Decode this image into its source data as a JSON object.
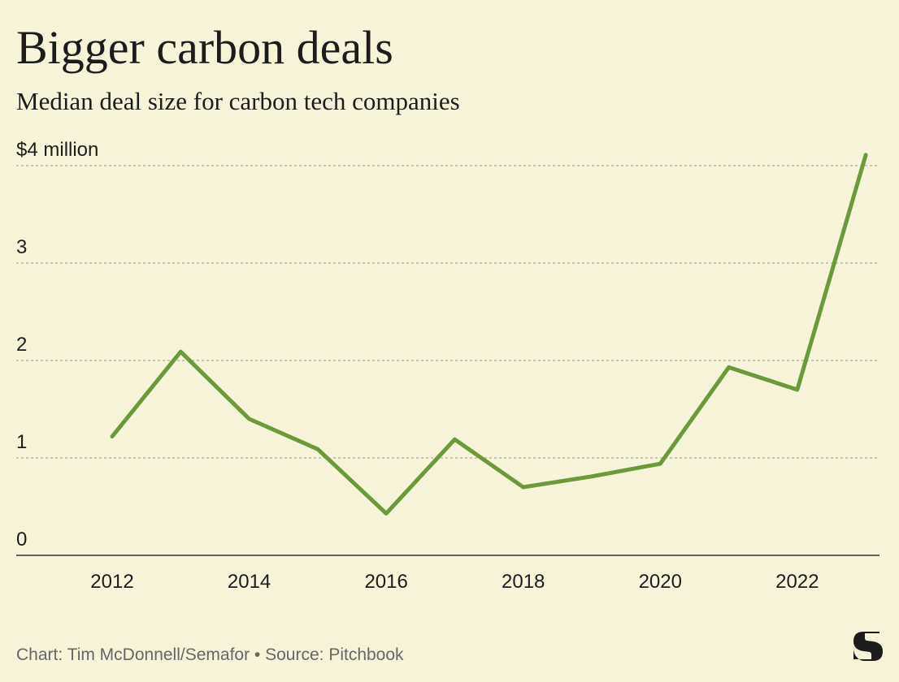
{
  "chart_data": {
    "type": "line",
    "title": "Bigger carbon deals",
    "subtitle": "Median deal size for carbon tech companies",
    "source": "Chart: Tim McDonnell/Semafor • Source: Pitchbook",
    "x": [
      2012,
      2013,
      2014,
      2015,
      2016,
      2017,
      2018,
      2019,
      2020,
      2021,
      2022,
      2023
    ],
    "series": [
      {
        "color": "#6a9a3a",
        "values": [
          1.22,
          2.09,
          1.4,
          1.09,
          0.43,
          1.19,
          0.7,
          0.81,
          0.94,
          1.93,
          1.7,
          4.11
        ]
      }
    ],
    "xlim": [
      2010.6,
      2023.2
    ],
    "xticks": [
      2012,
      2014,
      2016,
      2018,
      2020,
      2022
    ],
    "ylim": [
      0,
      4.15
    ],
    "yticks": [
      0,
      1,
      2,
      3,
      {
        "value": 4,
        "label": "$4 million"
      }
    ],
    "grid": true
  }
}
